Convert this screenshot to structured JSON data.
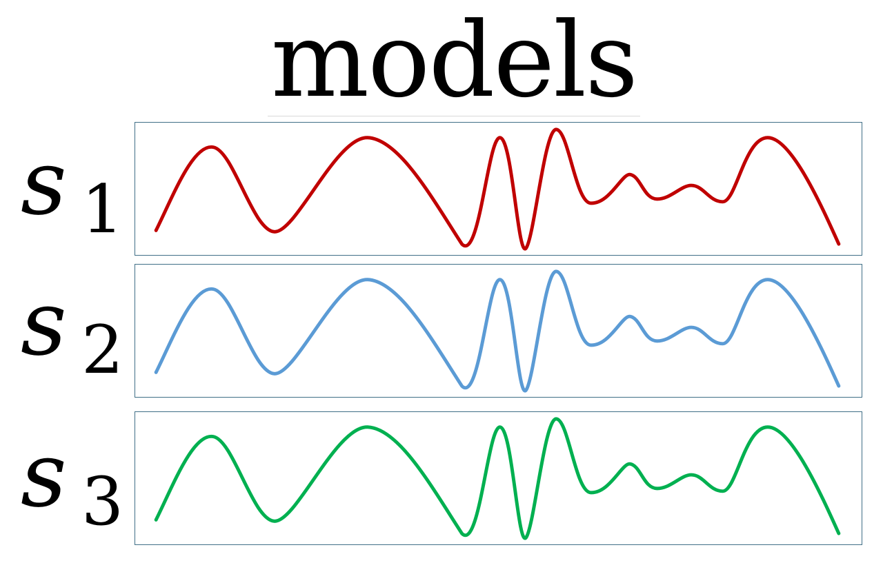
{
  "title": "models",
  "rows": [
    {
      "symbol": "s",
      "subscript": "1",
      "color": "#c00000"
    },
    {
      "symbol": "s",
      "subscript": "2",
      "color": "#5b9bd5"
    },
    {
      "symbol": "s",
      "subscript": "3",
      "color": "#00b050"
    }
  ]
}
